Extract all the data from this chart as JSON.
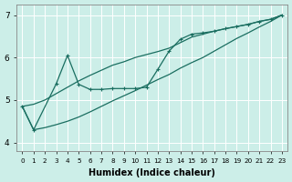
{
  "xlabel": "Humidex (Indice chaleur)",
  "bg_color": "#cceee8",
  "line_color": "#1a6e60",
  "xlim": [
    -0.5,
    23.5
  ],
  "ylim": [
    3.8,
    7.25
  ],
  "yticks": [
    4,
    5,
    6,
    7
  ],
  "xticks": [
    0,
    1,
    2,
    3,
    4,
    5,
    6,
    7,
    8,
    9,
    10,
    11,
    12,
    13,
    14,
    15,
    16,
    17,
    18,
    19,
    20,
    21,
    22,
    23
  ],
  "line_upper_x": [
    0,
    1,
    2,
    3,
    4,
    5,
    6,
    7,
    8,
    9,
    10,
    11,
    12,
    13,
    14,
    15,
    16,
    17,
    18,
    19,
    20,
    21,
    22,
    23
  ],
  "line_upper_y": [
    4.85,
    4.9,
    5.0,
    5.15,
    5.3,
    5.45,
    5.58,
    5.7,
    5.82,
    5.9,
    6.0,
    6.07,
    6.14,
    6.22,
    6.35,
    6.48,
    6.55,
    6.62,
    6.68,
    6.73,
    6.78,
    6.85,
    6.9,
    7.0
  ],
  "line_lower_x": [
    0,
    1,
    2,
    3,
    4,
    5,
    6,
    7,
    8,
    9,
    10,
    11,
    12,
    13,
    14,
    15,
    16,
    17,
    18,
    19,
    20,
    21,
    22,
    23
  ],
  "line_lower_y": [
    4.85,
    4.3,
    4.35,
    4.42,
    4.5,
    4.6,
    4.72,
    4.85,
    4.98,
    5.1,
    5.22,
    5.35,
    5.48,
    5.6,
    5.75,
    5.88,
    6.0,
    6.15,
    6.3,
    6.45,
    6.58,
    6.72,
    6.85,
    7.0
  ],
  "line_zigzag_x": [
    0,
    1,
    3,
    4,
    5,
    6,
    7,
    8,
    9,
    10,
    11,
    12,
    13,
    14,
    15,
    16,
    17,
    18,
    19,
    20,
    21,
    22,
    23
  ],
  "line_zigzag_y": [
    4.85,
    4.3,
    5.38,
    6.05,
    5.37,
    5.25,
    5.25,
    5.27,
    5.27,
    5.27,
    5.3,
    5.72,
    6.15,
    6.43,
    6.55,
    6.58,
    6.62,
    6.68,
    6.73,
    6.78,
    6.85,
    6.9,
    7.0
  ]
}
